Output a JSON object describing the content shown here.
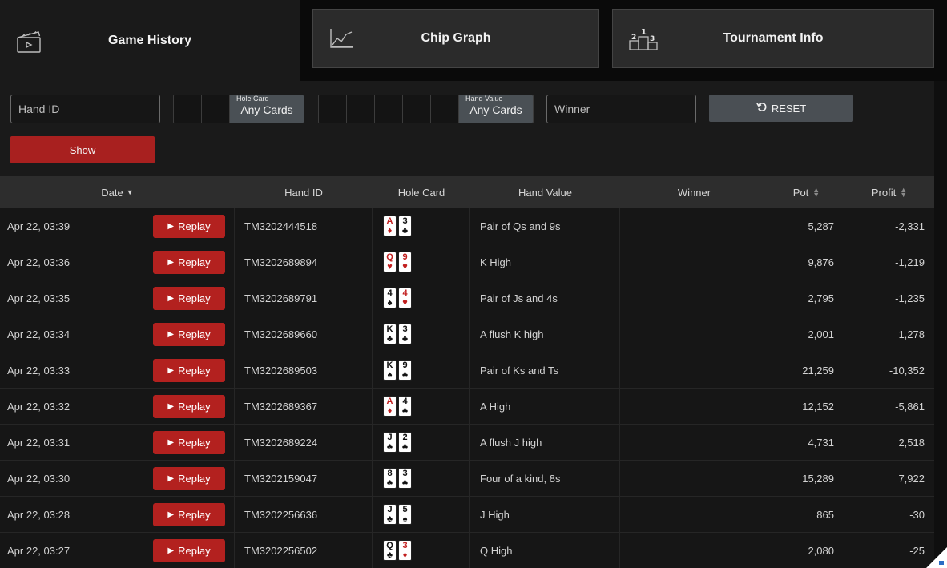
{
  "tabs": [
    {
      "label": "Game History",
      "icon": "clapperboard-icon",
      "active": true
    },
    {
      "label": "Chip Graph",
      "icon": "line-chart-icon",
      "active": false
    },
    {
      "label": "Tournament Info",
      "icon": "podium-icon",
      "active": false
    }
  ],
  "filters": {
    "hand_id_placeholder": "Hand ID",
    "hole_card_label": "Hole Card",
    "hole_card_value": "Any Cards",
    "hand_value_label": "Hand Value",
    "hand_value_value": "Any Cards",
    "winner_placeholder": "Winner",
    "reset_label": "RESET",
    "show_label": "Show"
  },
  "table": {
    "headers": {
      "date": "Date",
      "hand_id": "Hand ID",
      "hole_card": "Hole Card",
      "hand_value": "Hand Value",
      "winner": "Winner",
      "pot": "Pot",
      "profit": "Profit"
    },
    "replay_label": "Replay",
    "rows": [
      {
        "date": "Apr 22, 03:39",
        "hand_id": "TM3202444518",
        "cards": [
          {
            "rank": "A",
            "suit": "♦"
          },
          {
            "rank": "3",
            "suit": "♣"
          }
        ],
        "hand_value": "Pair of Qs and 9s",
        "winner": "",
        "pot": "5,287",
        "profit": "-2,331"
      },
      {
        "date": "Apr 22, 03:36",
        "hand_id": "TM3202689894",
        "cards": [
          {
            "rank": "Q",
            "suit": "♥"
          },
          {
            "rank": "9",
            "suit": "♥"
          }
        ],
        "hand_value": "K High",
        "winner": "",
        "pot": "9,876",
        "profit": "-1,219"
      },
      {
        "date": "Apr 22, 03:35",
        "hand_id": "TM3202689791",
        "cards": [
          {
            "rank": "4",
            "suit": "♠"
          },
          {
            "rank": "4",
            "suit": "♥"
          }
        ],
        "hand_value": "Pair of Js and 4s",
        "winner": "",
        "pot": "2,795",
        "profit": "-1,235"
      },
      {
        "date": "Apr 22, 03:34",
        "hand_id": "TM3202689660",
        "cards": [
          {
            "rank": "K",
            "suit": "♣"
          },
          {
            "rank": "3",
            "suit": "♣"
          }
        ],
        "hand_value": "A flush K high",
        "winner": "",
        "pot": "2,001",
        "profit": "1,278"
      },
      {
        "date": "Apr 22, 03:33",
        "hand_id": "TM3202689503",
        "cards": [
          {
            "rank": "K",
            "suit": "♠"
          },
          {
            "rank": "9",
            "suit": "♣"
          }
        ],
        "hand_value": "Pair of Ks and Ts",
        "winner": "",
        "pot": "21,259",
        "profit": "-10,352"
      },
      {
        "date": "Apr 22, 03:32",
        "hand_id": "TM3202689367",
        "cards": [
          {
            "rank": "A",
            "suit": "♦"
          },
          {
            "rank": "4",
            "suit": "♣"
          }
        ],
        "hand_value": "A High",
        "winner": "",
        "pot": "12,152",
        "profit": "-5,861"
      },
      {
        "date": "Apr 22, 03:31",
        "hand_id": "TM3202689224",
        "cards": [
          {
            "rank": "J",
            "suit": "♣"
          },
          {
            "rank": "2",
            "suit": "♣"
          }
        ],
        "hand_value": "A flush J high",
        "winner": "",
        "pot": "4,731",
        "profit": "2,518"
      },
      {
        "date": "Apr 22, 03:30",
        "hand_id": "TM3202159047",
        "cards": [
          {
            "rank": "8",
            "suit": "♣"
          },
          {
            "rank": "3",
            "suit": "♣"
          }
        ],
        "hand_value": "Four of a kind, 8s",
        "winner": "",
        "pot": "15,289",
        "profit": "7,922"
      },
      {
        "date": "Apr 22, 03:28",
        "hand_id": "TM3202256636",
        "cards": [
          {
            "rank": "J",
            "suit": "♣"
          },
          {
            "rank": "5",
            "suit": "♠"
          }
        ],
        "hand_value": "J High",
        "winner": "",
        "pot": "865",
        "profit": "-30"
      },
      {
        "date": "Apr 22, 03:27",
        "hand_id": "TM3202256502",
        "cards": [
          {
            "rank": "Q",
            "suit": "♣"
          },
          {
            "rank": "3",
            "suit": "♦"
          }
        ],
        "hand_value": "Q High",
        "winner": "",
        "pot": "2,080",
        "profit": "-25"
      }
    ]
  },
  "colors": {
    "accent_red": "#b3211f",
    "header_bg": "#2d2d2d",
    "row_bg": "#161616"
  }
}
